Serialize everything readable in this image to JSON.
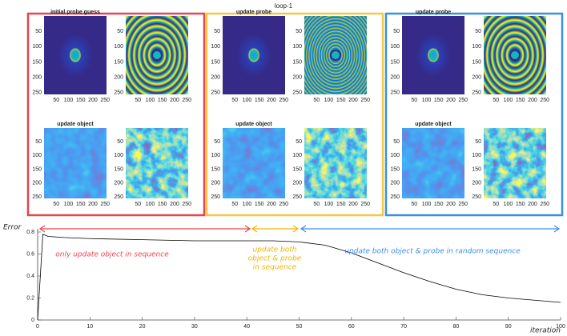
{
  "title": "loop-1",
  "figure": {
    "image_ticks": [
      50,
      100,
      150,
      200,
      250
    ],
    "image_lim": [
      0,
      256
    ],
    "stages": [
      {
        "probe_title": "initial probe guess",
        "object_title": "update object",
        "color": "#e8434f"
      },
      {
        "probe_title": "update probe",
        "object_title": "update object",
        "color": "#f5c842"
      },
      {
        "probe_title": "update probe",
        "object_title": "update object",
        "color": "#3a8ee6"
      }
    ]
  },
  "chart_data": {
    "type": "line",
    "ylabel": "Error",
    "xlabel": "iteration",
    "x": [
      0,
      1,
      2,
      5,
      10,
      20,
      30,
      40,
      45,
      50,
      55,
      60,
      65,
      70,
      75,
      80,
      85,
      90,
      95,
      100
    ],
    "series": [
      {
        "color": "#000000",
        "values": [
          0,
          0.78,
          0.76,
          0.75,
          0.74,
          0.73,
          0.72,
          0.72,
          0.72,
          0.71,
          0.68,
          0.61,
          0.52,
          0.43,
          0.35,
          0.28,
          0.23,
          0.2,
          0.18,
          0.16
        ]
      }
    ],
    "xlim": [
      0,
      100
    ],
    "ylim": [
      0,
      0.8
    ],
    "xticks": [
      0,
      10,
      20,
      30,
      40,
      50,
      60,
      70,
      80,
      90,
      100
    ],
    "yticks": [
      0,
      0.2,
      0.4,
      0.6,
      0.8
    ],
    "annotations": [
      {
        "lines": [
          "only update object in sequence"
        ],
        "color": "#e8434f"
      },
      {
        "lines": [
          "update both",
          "object & probe",
          "in sequence"
        ],
        "color": "#f0b400"
      },
      {
        "lines": [
          "update both object & probe in random sequence"
        ],
        "color": "#3a8ee6"
      }
    ]
  }
}
